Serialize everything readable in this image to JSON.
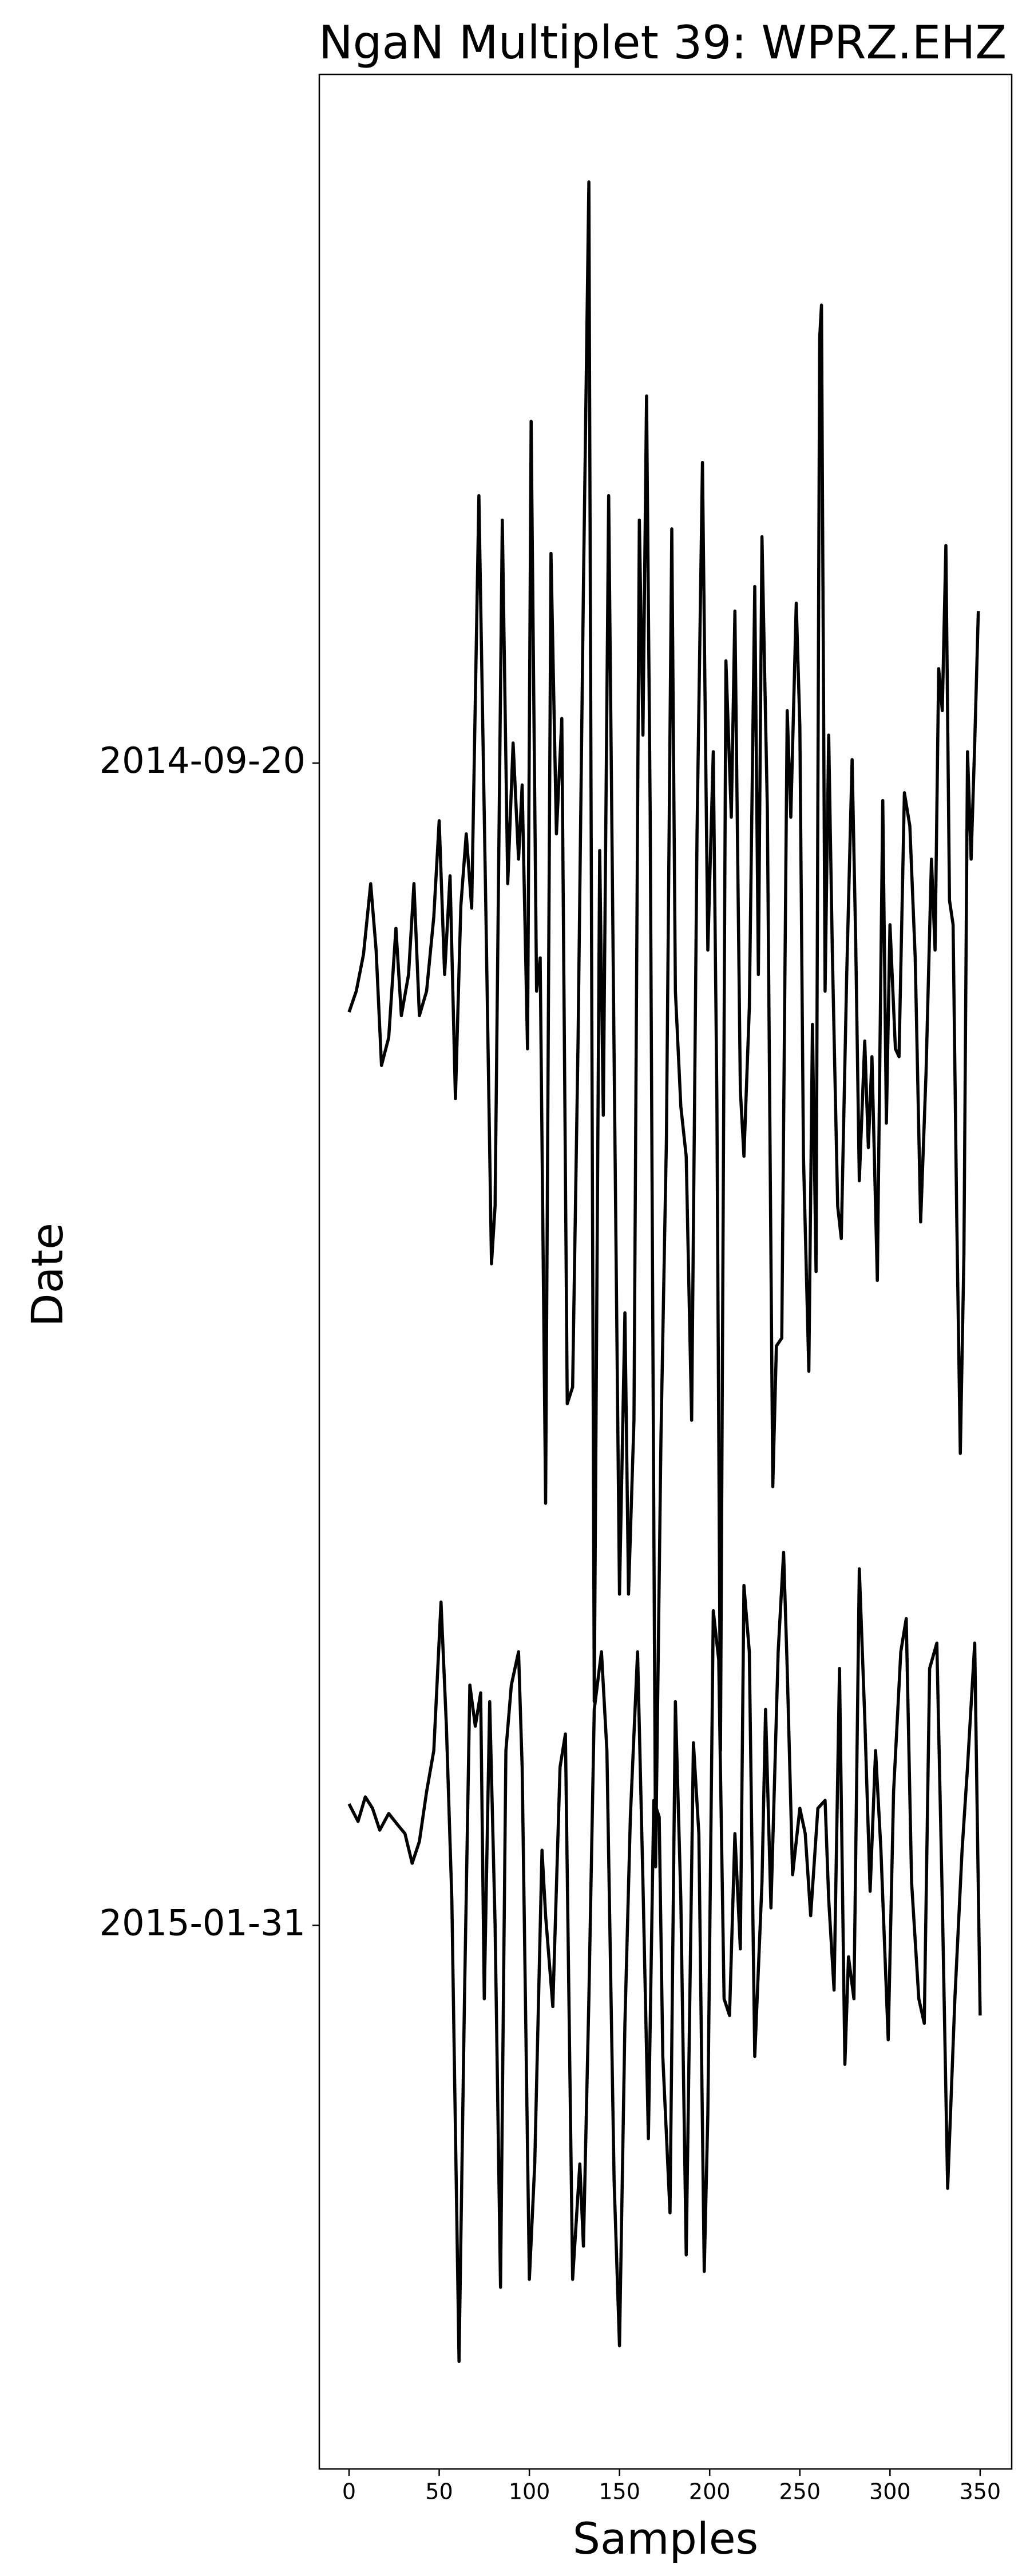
{
  "chart_data": {
    "type": "line",
    "title": "NgaN Multiplet 39: WPRZ.EHZ",
    "xlabel": "Samples",
    "ylabel": "Date",
    "xlim": [
      -16.5,
      367.5
    ],
    "xticks": [
      0,
      50,
      100,
      150,
      200,
      250,
      300,
      350
    ],
    "ylim": [
      195.2,
      -78.8
    ],
    "yticks": [
      {
        "value": 0,
        "label": "2014-09-20"
      },
      {
        "value": 133,
        "label": "2015-01-31"
      }
    ],
    "grid": false,
    "series": [
      {
        "color": "#000000",
        "x": [
          0,
          4,
          8,
          12,
          15,
          18,
          22,
          26,
          29,
          33,
          36,
          39,
          43,
          47,
          50,
          53,
          56,
          59,
          62,
          65,
          68,
          72,
          76,
          79,
          81,
          85,
          88,
          91,
          94,
          96,
          99,
          101,
          104,
          106,
          109,
          112,
          115,
          118,
          121,
          124,
          127,
          130,
          133,
          136,
          139,
          141,
          144,
          147,
          150,
          153,
          155,
          158,
          161,
          163,
          165,
          167,
          170,
          173,
          176,
          179,
          181,
          184,
          187,
          190,
          193,
          196,
          199,
          202,
          204,
          206,
          209,
          212,
          214,
          217,
          219,
          222,
          225,
          227,
          229,
          232,
          235,
          237,
          240,
          243,
          245,
          248,
          250,
          252,
          255,
          257,
          259,
          261,
          262,
          264,
          266,
          268,
          271,
          273,
          276,
          279,
          281,
          283,
          286,
          288,
          290,
          293,
          296,
          298,
          300,
          303,
          305,
          308,
          311,
          314,
          317,
          320,
          323,
          325,
          327,
          329,
          331,
          333,
          335,
          337,
          339,
          341,
          343,
          345,
          347,
          349
        ],
        "values": [
          28.5,
          26.1,
          21.9,
          13.8,
          21.4,
          34.6,
          31.4,
          18.9,
          28.9,
          24.2,
          13.8,
          28.9,
          26.1,
          17.6,
          6.6,
          24.2,
          12.9,
          38.4,
          16.3,
          8.1,
          16.6,
          -30.6,
          18.5,
          57.3,
          50.7,
          -27.8,
          13.8,
          -2.3,
          11.0,
          2.5,
          32.7,
          -39.1,
          26.1,
          22.3,
          84.7,
          -24.0,
          8.1,
          -5.1,
          73.3,
          71.4,
          31.8,
          -20.2,
          -66.5,
          107.4,
          10.0,
          40.3,
          -30.6,
          33.6,
          95.1,
          62.9,
          95.1,
          75.2,
          -27.8,
          -3.2,
          -42.0,
          5.3,
          126.3,
          77.1,
          43.1,
          -26.8,
          26.1,
          39.3,
          45.0,
          75.2,
          8.1,
          -34.4,
          21.4,
          -1.3,
          38.4,
          113.0,
          -11.7,
          6.2,
          -17.4,
          37.4,
          45.0,
          28.0,
          -20.2,
          24.2,
          -25.9,
          5.3,
          82.8,
          66.7,
          65.8,
          -6.0,
          6.2,
          -18.3,
          -4.2,
          45.0,
          69.6,
          29.9,
          58.2,
          -48.6,
          -52.4,
          26.1,
          -3.2,
          21.4,
          50.7,
          54.4,
          24.2,
          -0.4,
          20.4,
          47.8,
          31.8,
          44.0,
          33.6,
          59.2,
          4.3,
          41.2,
          18.5,
          32.7,
          33.6,
          3.4,
          7.2,
          22.3,
          52.5,
          35.5,
          11.0,
          21.4,
          -10.8,
          -6.0,
          -24.9,
          15.7,
          18.5,
          51.6,
          79.0,
          56.3,
          -1.3,
          11.0,
          -2.3,
          -17.4
        ]
      },
      {
        "color": "#000000",
        "x": [
          0,
          5,
          9,
          13,
          17,
          22,
          27,
          31,
          35,
          39,
          43,
          47,
          51,
          54,
          57,
          61,
          64,
          67,
          70,
          73,
          75,
          78,
          81,
          84,
          87,
          90,
          94,
          96,
          100,
          103,
          107,
          109,
          113,
          117,
          120,
          124,
          128,
          130,
          133,
          136,
          140,
          143,
          147,
          150,
          153,
          156,
          160,
          163,
          166,
          169,
          172,
          174,
          178,
          181,
          184,
          187,
          191,
          194,
          197,
          199,
          202,
          205,
          208,
          211,
          214,
          217,
          219,
          222,
          225,
          229,
          231,
          234,
          238,
          241,
          243,
          246,
          250,
          253,
          256,
          260,
          264,
          266,
          269,
          272,
          275,
          277,
          280,
          283,
          286,
          289,
          292,
          295,
          299,
          302,
          306,
          309,
          312,
          316,
          319,
          322,
          326,
          329,
          332,
          336,
          340,
          343,
          347,
          350
        ],
        "values": [
          119.1,
          121.1,
          118.3,
          119.6,
          122.1,
          120.2,
          121.5,
          122.5,
          125.9,
          123.4,
          117.7,
          113.0,
          96.0,
          110.2,
          130.0,
          182.9,
          141.4,
          105.5,
          110.2,
          106.4,
          141.4,
          107.4,
          132.9,
          174.4,
          113.0,
          105.5,
          101.7,
          114.9,
          173.5,
          160.3,
          124.4,
          131.9,
          142.3,
          114.9,
          111.1,
          173.5,
          160.3,
          169.7,
          141.4,
          108.3,
          101.7,
          113.0,
          162.2,
          181.1,
          144.2,
          120.6,
          101.7,
          128.1,
          157.4,
          118.7,
          120.6,
          148.0,
          165.9,
          107.4,
          130.0,
          170.7,
          112.1,
          122.5,
          172.6,
          154.6,
          97.0,
          102.6,
          141.4,
          143.3,
          122.5,
          135.7,
          94.1,
          101.7,
          148.0,
          128.1,
          108.3,
          131.0,
          101.7,
          90.3,
          103.6,
          127.2,
          119.6,
          122.5,
          131.9,
          119.6,
          118.7,
          130.0,
          140.4,
          103.6,
          148.9,
          136.6,
          141.4,
          92.2,
          109.2,
          129.1,
          113.0,
          124.4,
          146.1,
          117.7,
          101.7,
          97.9,
          128.1,
          141.4,
          144.2,
          103.6,
          100.7,
          130.0,
          163.1,
          141.4,
          124.4,
          114.9,
          100.7,
          143.3
        ]
      }
    ]
  }
}
